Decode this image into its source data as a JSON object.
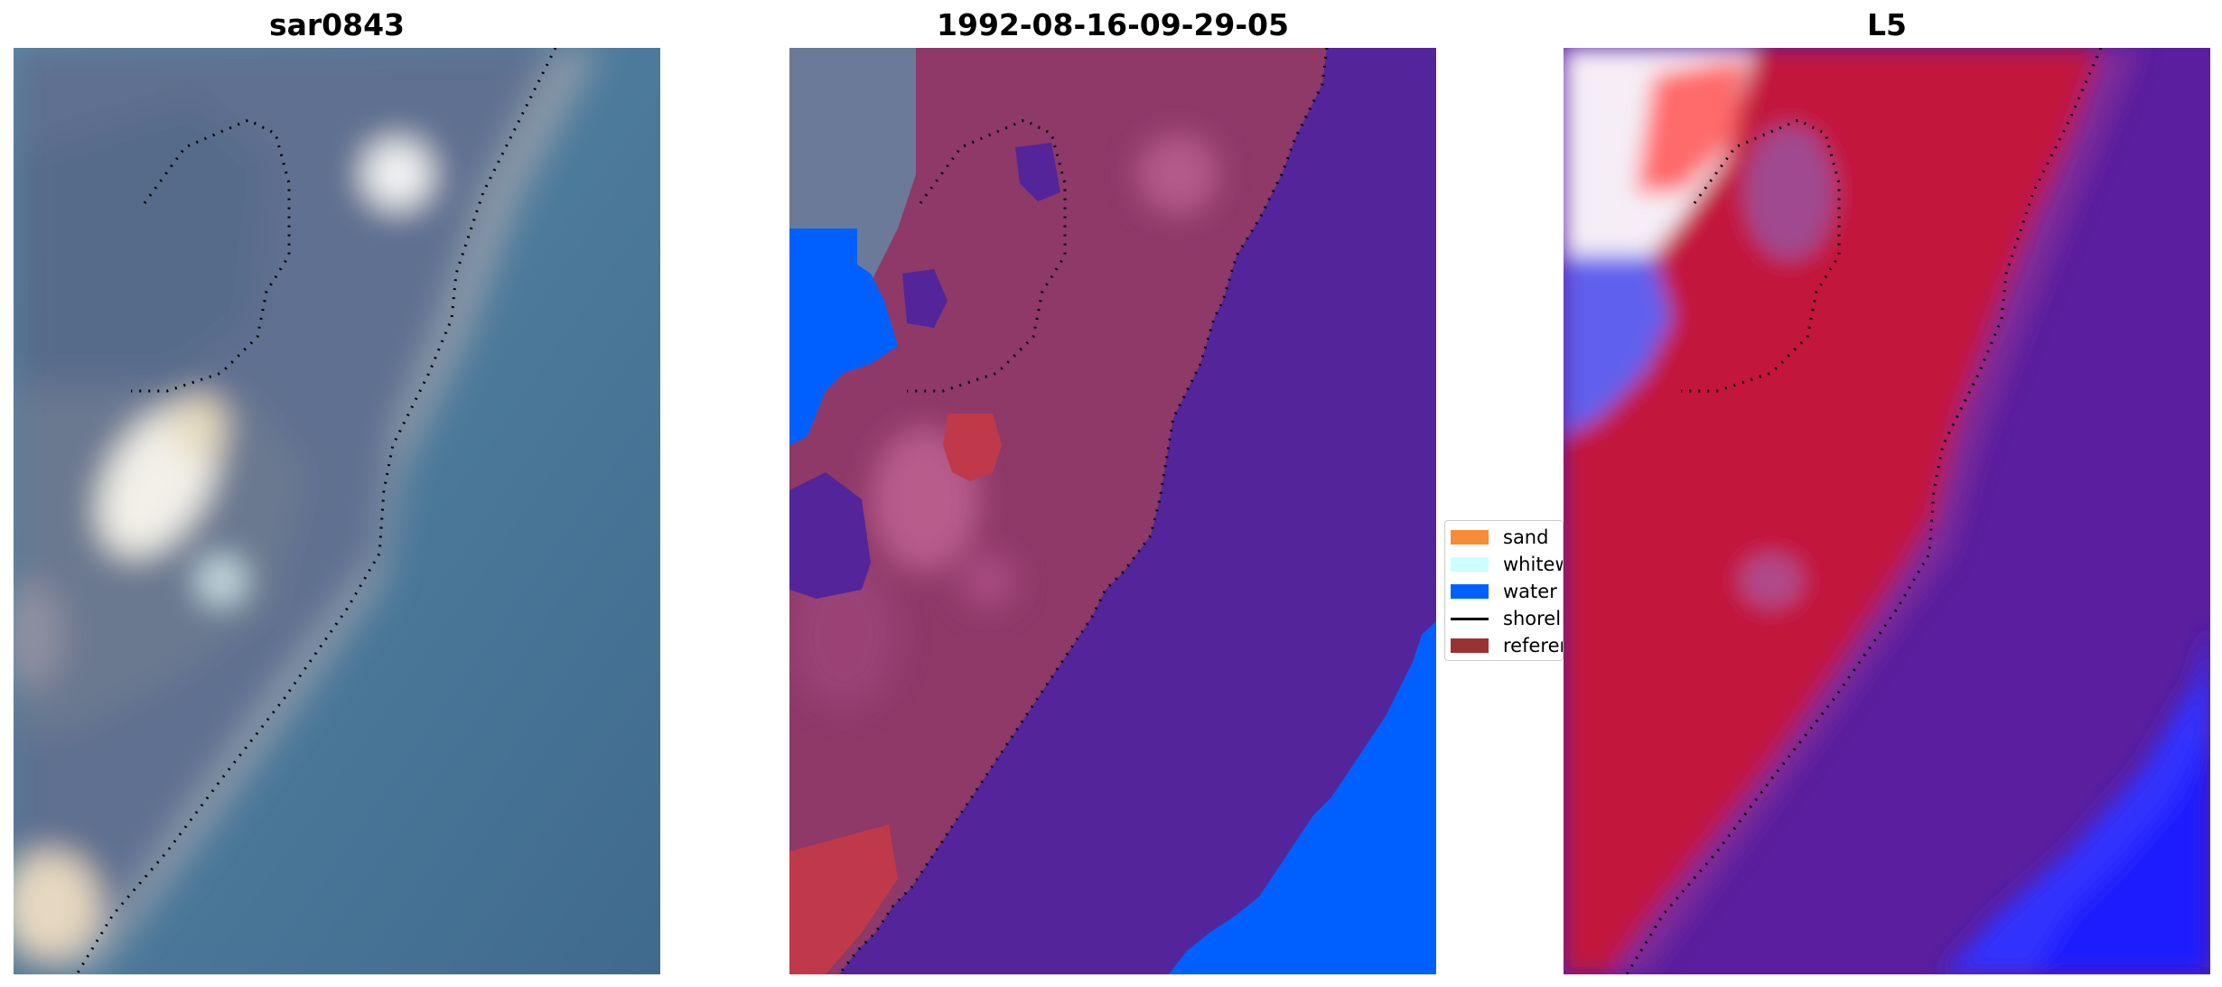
{
  "panels": [
    {
      "title": "sar0843"
    },
    {
      "title": "1992-08-16-09-29-05"
    },
    {
      "title": "L5"
    }
  ],
  "legend": {
    "items": [
      {
        "label": "sand",
        "color": "#f68c37",
        "kind": "patch"
      },
      {
        "label": "whitewater",
        "color": "#ccffff",
        "kind": "patch"
      },
      {
        "label": "water",
        "color": "#0060ff",
        "kind": "patch"
      },
      {
        "label": "shoreline",
        "color": "#000000",
        "kind": "line"
      },
      {
        "label": "reference shoreline",
        "color": "#993333",
        "kind": "patch"
      }
    ]
  },
  "colors": {
    "rgb_water": "#4c7a95",
    "rgb_land": "#5a6e88",
    "classified_sea": "#54259a",
    "classified_land": "#8e3968",
    "classified_water": "#0060ff",
    "classified_red": "#c0394a",
    "index_red": "#c2143e",
    "index_purple": "#5a1e9e",
    "index_blue": "#3333ff"
  }
}
